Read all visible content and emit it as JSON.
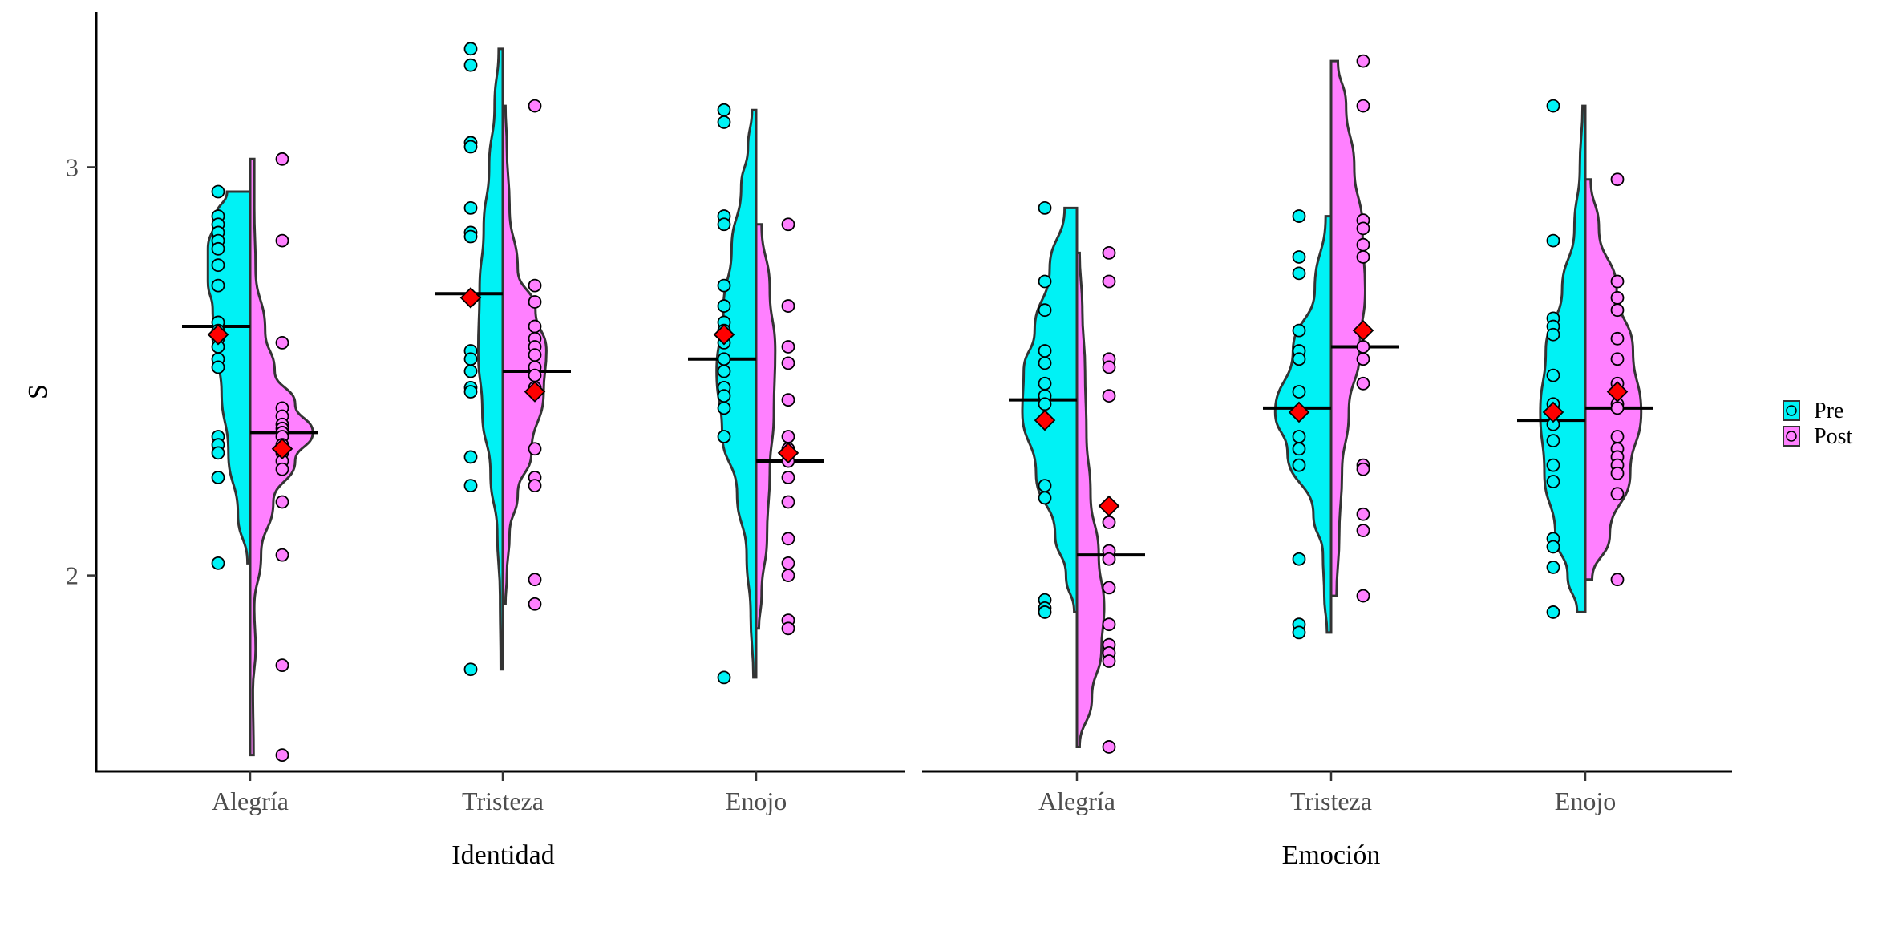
{
  "chart_data": {
    "type": "violin",
    "ylabel": "S",
    "ylim": [
      1.52,
      3.38
    ],
    "yticks": [
      2,
      3
    ],
    "legend_position": "right",
    "colors": {
      "Pre": "#00f2f5",
      "Post": "#ff80ff",
      "mean_marker": "#ff0000"
    },
    "groups": [
      "Pre",
      "Post"
    ],
    "panels": [
      {
        "xlabel": "Identidad",
        "categories": [
          {
            "name": "Alegría",
            "Pre": {
              "median": 2.61,
              "mean": 2.59,
              "points": [
                2.94,
                2.88,
                2.86,
                2.84,
                2.82,
                2.8,
                2.76,
                2.71,
                2.62,
                2.6,
                2.58,
                2.56,
                2.53,
                2.51,
                2.34,
                2.32,
                2.3,
                2.24,
                2.03
              ],
              "density": [
                [
                  2.03,
                  0.04
                ],
                [
                  2.15,
                  0.18
                ],
                [
                  2.3,
                  0.32
                ],
                [
                  2.45,
                  0.42
                ],
                [
                  2.55,
                  0.48
                ],
                [
                  2.65,
                  0.55
                ],
                [
                  2.72,
                  0.62
                ],
                [
                  2.8,
                  0.62
                ],
                [
                  2.88,
                  0.5
                ],
                [
                  2.94,
                  0.34
                ]
              ]
            },
            "Post": {
              "median": 2.35,
              "mean": 2.31,
              "points": [
                3.02,
                2.82,
                2.57,
                2.41,
                2.39,
                2.37,
                2.36,
                2.35,
                2.34,
                2.32,
                2.3,
                2.28,
                2.26,
                2.18,
                2.05,
                1.78,
                1.56
              ],
              "density": [
                [
                  1.56,
                  0.05
                ],
                [
                  1.72,
                  0.04
                ],
                [
                  1.82,
                  0.08
                ],
                [
                  1.92,
                  0.06
                ],
                [
                  2.05,
                  0.16
                ],
                [
                  2.18,
                  0.34
                ],
                [
                  2.28,
                  0.66
                ],
                [
                  2.35,
                  0.92
                ],
                [
                  2.42,
                  0.66
                ],
                [
                  2.5,
                  0.36
                ],
                [
                  2.6,
                  0.22
                ],
                [
                  2.75,
                  0.08
                ],
                [
                  2.9,
                  0.06
                ],
                [
                  3.02,
                  0.06
                ]
              ]
            }
          },
          {
            "name": "Tristeza",
            "Pre": {
              "median": 2.69,
              "mean": 2.68,
              "points": [
                3.29,
                3.25,
                3.06,
                3.05,
                2.9,
                2.84,
                2.83,
                2.68,
                2.55,
                2.53,
                2.5,
                2.46,
                2.45,
                2.29,
                2.22,
                1.77
              ],
              "density": [
                [
                  1.77,
                  0.03
                ],
                [
                  1.95,
                  0.04
                ],
                [
                  2.1,
                  0.08
                ],
                [
                  2.25,
                  0.18
                ],
                [
                  2.4,
                  0.3
                ],
                [
                  2.55,
                  0.36
                ],
                [
                  2.7,
                  0.34
                ],
                [
                  2.85,
                  0.28
                ],
                [
                  3.0,
                  0.2
                ],
                [
                  3.15,
                  0.12
                ],
                [
                  3.29,
                  0.06
                ]
              ]
            },
            "Post": {
              "median": 2.5,
              "mean": 2.45,
              "points": [
                3.15,
                2.71,
                2.67,
                2.61,
                2.58,
                2.56,
                2.54,
                2.51,
                2.49,
                2.46,
                2.31,
                2.24,
                2.22,
                1.99,
                1.93
              ],
              "density": [
                [
                  1.93,
                  0.04
                ],
                [
                  2.0,
                  0.06
                ],
                [
                  2.1,
                  0.1
                ],
                [
                  2.2,
                  0.22
                ],
                [
                  2.3,
                  0.42
                ],
                [
                  2.45,
                  0.6
                ],
                [
                  2.55,
                  0.64
                ],
                [
                  2.65,
                  0.48
                ],
                [
                  2.75,
                  0.22
                ],
                [
                  2.9,
                  0.1
                ],
                [
                  3.05,
                  0.06
                ],
                [
                  3.15,
                  0.04
                ]
              ]
            }
          },
          {
            "name": "Enojo",
            "Pre": {
              "median": 2.53,
              "mean": 2.59,
              "points": [
                3.14,
                3.11,
                2.88,
                2.86,
                2.71,
                2.66,
                2.62,
                2.6,
                2.57,
                2.53,
                2.5,
                2.46,
                2.44,
                2.41,
                2.34,
                1.75
              ],
              "density": [
                [
                  1.75,
                  0.04
                ],
                [
                  1.9,
                  0.08
                ],
                [
                  2.05,
                  0.14
                ],
                [
                  2.2,
                  0.28
                ],
                [
                  2.35,
                  0.5
                ],
                [
                  2.5,
                  0.58
                ],
                [
                  2.65,
                  0.48
                ],
                [
                  2.8,
                  0.36
                ],
                [
                  2.95,
                  0.22
                ],
                [
                  3.05,
                  0.12
                ],
                [
                  3.14,
                  0.06
                ]
              ]
            },
            "Post": {
              "median": 2.28,
              "mean": 2.3,
              "points": [
                2.86,
                2.66,
                2.56,
                2.52,
                2.43,
                2.34,
                2.31,
                2.28,
                2.24,
                2.18,
                2.09,
                2.03,
                2.0,
                1.89,
                1.87
              ],
              "density": [
                [
                  1.87,
                  0.04
                ],
                [
                  1.95,
                  0.08
                ],
                [
                  2.1,
                  0.16
                ],
                [
                  2.25,
                  0.2
                ],
                [
                  2.4,
                  0.26
                ],
                [
                  2.55,
                  0.28
                ],
                [
                  2.7,
                  0.2
                ],
                [
                  2.86,
                  0.08
                ]
              ]
            }
          }
        ]
      },
      {
        "xlabel": "Emoción",
        "categories": [
          {
            "name": "Alegría",
            "Pre": {
              "median": 2.43,
              "mean": 2.38,
              "points": [
                2.9,
                2.72,
                2.65,
                2.55,
                2.52,
                2.47,
                2.44,
                2.42,
                2.22,
                2.19,
                1.94,
                1.92,
                1.91
              ],
              "density": [
                [
                  1.91,
                  0.04
                ],
                [
                  2.0,
                  0.16
                ],
                [
                  2.1,
                  0.32
                ],
                [
                  2.25,
                  0.6
                ],
                [
                  2.4,
                  0.8
                ],
                [
                  2.5,
                  0.78
                ],
                [
                  2.6,
                  0.62
                ],
                [
                  2.75,
                  0.4
                ],
                [
                  2.9,
                  0.18
                ]
              ]
            },
            "Post": {
              "median": 2.05,
              "mean": 2.17,
              "points": [
                2.79,
                2.72,
                2.53,
                2.51,
                2.44,
                2.13,
                2.06,
                2.04,
                1.97,
                1.88,
                1.83,
                1.81,
                1.79,
                1.58
              ],
              "density": [
                [
                  1.58,
                  0.04
                ],
                [
                  1.7,
                  0.22
                ],
                [
                  1.82,
                  0.36
                ],
                [
                  1.92,
                  0.4
                ],
                [
                  2.05,
                  0.32
                ],
                [
                  2.2,
                  0.2
                ],
                [
                  2.35,
                  0.14
                ],
                [
                  2.5,
                  0.12
                ],
                [
                  2.65,
                  0.08
                ],
                [
                  2.79,
                  0.04
                ]
              ]
            }
          },
          {
            "name": "Tristeza",
            "Pre": {
              "median": 2.41,
              "mean": 2.4,
              "points": [
                2.88,
                2.78,
                2.74,
                2.6,
                2.55,
                2.53,
                2.45,
                2.34,
                2.31,
                2.27,
                2.04,
                1.88,
                1.86
              ],
              "density": [
                [
                  1.86,
                  0.06
                ],
                [
                  1.95,
                  0.1
                ],
                [
                  2.05,
                  0.12
                ],
                [
                  2.15,
                  0.26
                ],
                [
                  2.3,
                  0.64
                ],
                [
                  2.4,
                  0.82
                ],
                [
                  2.55,
                  0.56
                ],
                [
                  2.7,
                  0.24
                ],
                [
                  2.88,
                  0.08
                ]
              ]
            },
            "Post": {
              "median": 2.56,
              "mean": 2.6,
              "points": [
                3.26,
                3.15,
                2.87,
                2.85,
                2.81,
                2.78,
                2.56,
                2.53,
                2.47,
                2.27,
                2.26,
                2.15,
                2.11,
                1.95
              ],
              "density": [
                [
                  1.95,
                  0.08
                ],
                [
                  2.1,
                  0.12
                ],
                [
                  2.25,
                  0.16
                ],
                [
                  2.4,
                  0.26
                ],
                [
                  2.55,
                  0.42
                ],
                [
                  2.7,
                  0.5
                ],
                [
                  2.85,
                  0.46
                ],
                [
                  3.0,
                  0.34
                ],
                [
                  3.15,
                  0.22
                ],
                [
                  3.26,
                  0.1
                ]
              ]
            }
          },
          {
            "name": "Enojo",
            "Pre": {
              "median": 2.38,
              "mean": 2.4,
              "points": [
                3.15,
                2.82,
                2.63,
                2.61,
                2.59,
                2.49,
                2.42,
                2.37,
                2.33,
                2.27,
                2.23,
                2.09,
                2.07,
                2.02,
                1.91
              ],
              "density": [
                [
                  1.91,
                  0.12
                ],
                [
                  2.0,
                  0.26
                ],
                [
                  2.1,
                  0.44
                ],
                [
                  2.25,
                  0.6
                ],
                [
                  2.4,
                  0.66
                ],
                [
                  2.55,
                  0.58
                ],
                [
                  2.7,
                  0.34
                ],
                [
                  2.85,
                  0.16
                ],
                [
                  3.0,
                  0.08
                ],
                [
                  3.15,
                  0.04
                ]
              ]
            },
            "Post": {
              "median": 2.41,
              "mean": 2.45,
              "points": [
                2.97,
                2.72,
                2.68,
                2.65,
                2.58,
                2.53,
                2.47,
                2.42,
                2.41,
                2.34,
                2.31,
                2.29,
                2.27,
                2.25,
                2.2,
                1.99
              ],
              "density": [
                [
                  1.99,
                  0.1
                ],
                [
                  2.1,
                  0.36
                ],
                [
                  2.25,
                  0.66
                ],
                [
                  2.4,
                  0.82
                ],
                [
                  2.55,
                  0.7
                ],
                [
                  2.7,
                  0.46
                ],
                [
                  2.85,
                  0.2
                ],
                [
                  2.97,
                  0.08
                ]
              ]
            }
          }
        ]
      }
    ]
  }
}
